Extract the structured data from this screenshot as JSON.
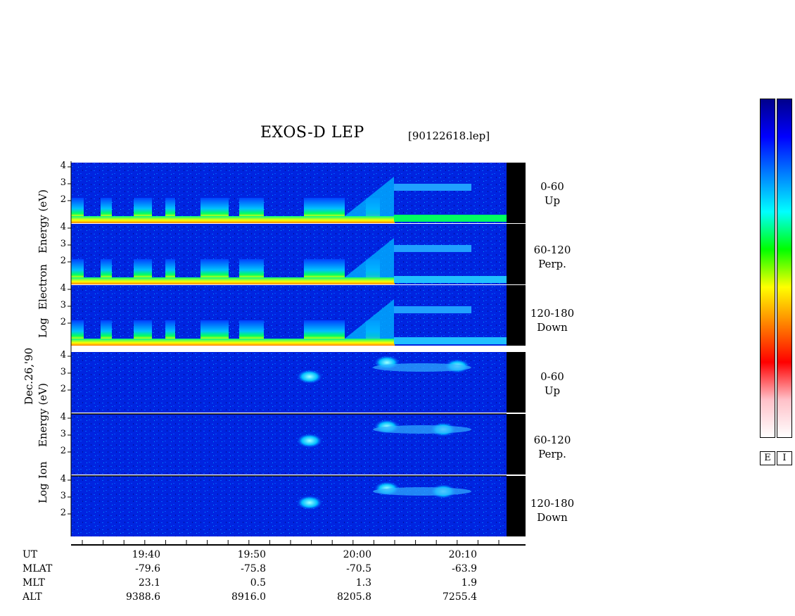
{
  "chart_data": {
    "type": "heatmap",
    "title": "EXOS-D LEP",
    "file": "[90122618.lep]",
    "date_label": "Dec.26,'90",
    "groups": [
      {
        "name": "electron",
        "ylabel": "Log Electron Energy (eV)",
        "ylabel_parts": [
          "Log",
          "Electron",
          "Energy (eV)"
        ],
        "panels": [
          {
            "range": "0-60",
            "dir": "Up",
            "yticks": [
              "4",
              "3",
              "2"
            ]
          },
          {
            "range": "60-120",
            "dir": "Perp.",
            "yticks": [
              "4",
              "3",
              "2"
            ]
          },
          {
            "range": "120-180",
            "dir": "Down",
            "yticks": [
              "4",
              "3",
              "2"
            ]
          }
        ]
      },
      {
        "name": "ion",
        "ylabel": "Log Ion Energy (eV)",
        "ylabel_parts": [
          "Log",
          "Ion",
          "Energy (eV)"
        ],
        "panels": [
          {
            "range": "0-60",
            "dir": "Up",
            "yticks": [
              "4",
              "3",
              "2"
            ]
          },
          {
            "range": "60-120",
            "dir": "Perp.",
            "yticks": [
              "4",
              "3",
              "2"
            ]
          },
          {
            "range": "120-180",
            "dir": "Down",
            "yticks": [
              "4",
              "3",
              "2"
            ]
          }
        ]
      }
    ],
    "ylim": [
      1,
      4
    ],
    "x_ticks": [
      "19:40",
      "19:50",
      "20:00",
      "20:10"
    ],
    "ephemeris": [
      {
        "label": "UT",
        "values": [
          "19:40",
          "19:50",
          "20:00",
          "20:10"
        ]
      },
      {
        "label": "MLAT",
        "values": [
          "-79.6",
          "-75.8",
          "-70.5",
          "-63.9"
        ]
      },
      {
        "label": "MLT",
        "values": [
          "23.1",
          "0.5",
          "1.3",
          "1.9"
        ]
      },
      {
        "label": "ALT",
        "values": [
          "9388.6",
          "8916.0",
          "8205.8",
          "7255.4"
        ]
      }
    ],
    "colorbars": [
      {
        "label": "E"
      },
      {
        "label": "I"
      }
    ],
    "colormap": [
      "#ffffff",
      "#ffc0c8",
      "#ff0000",
      "#ff8000",
      "#ffff00",
      "#00ff00",
      "#00ffff",
      "#0080ff",
      "#0000ff",
      "#00008b"
    ]
  }
}
